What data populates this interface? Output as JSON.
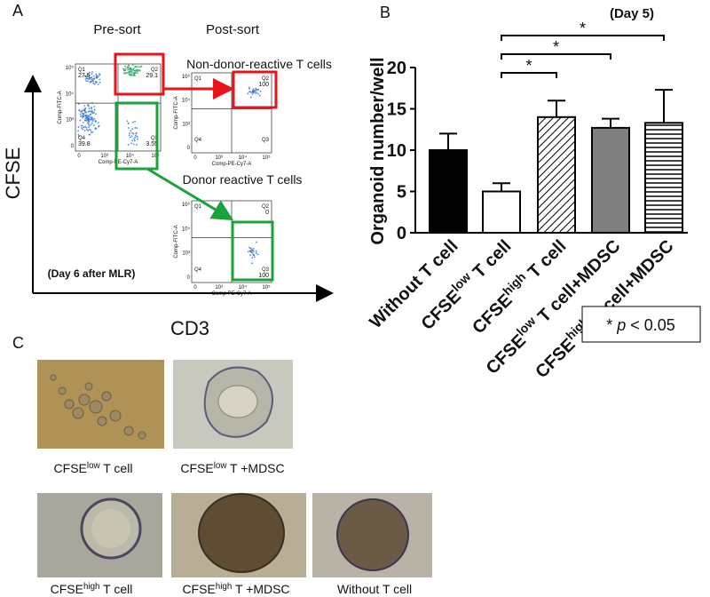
{
  "panel_a": {
    "label": "A",
    "pre_sort": "Pre-sort",
    "post_sort": "Post-sort",
    "y_axis": "CFSE",
    "x_axis": "CD3",
    "non_donor": "Non-donor-reactive T cells",
    "donor": "Donor reactive T cells",
    "note": "(Day 6 after MLR)",
    "plots": [
      {
        "y_label": "Comp-FITC-A",
        "x_label": "Comp-PE-Cy7-A",
        "y_ticks": [
          "10⁵",
          "10⁴",
          "10³",
          "0"
        ],
        "x_ticks": [
          "0",
          "10³",
          "10⁴",
          "10⁵"
        ],
        "quadrants": [
          {
            "name": "Q1",
            "value": 27.5
          },
          {
            "name": "Q2",
            "value": 29.1
          },
          {
            "name": "Q4",
            "value": 39.8
          },
          {
            "name": "Q3",
            "value": 3.55
          }
        ]
      },
      {
        "y_label": "Comp-FITC-A",
        "x_label": "Comp-PE-Cy7-A",
        "y_ticks": [
          "10⁵",
          "10⁴",
          "10³",
          "0"
        ],
        "x_ticks": [
          "0",
          "10³",
          "10⁴",
          "10⁵"
        ],
        "quadrants": [
          {
            "name": "Q1"
          },
          {
            "name": "Q2",
            "value": 100
          },
          {
            "name": "Q4"
          },
          {
            "name": "Q3"
          }
        ]
      },
      {
        "y_label": "Comp-FITC-A",
        "x_label": "Comp-PE-Cy7-A",
        "y_ticks": [
          "10⁵",
          "10⁴",
          "10³",
          "0"
        ],
        "x_ticks": [
          "0",
          "10³",
          "10⁴",
          "10⁵"
        ],
        "quadrants": [
          {
            "name": "Q1"
          },
          {
            "name": "Q2",
            "value": 0
          },
          {
            "name": "Q4"
          },
          {
            "name": "Q3",
            "value": 100
          }
        ]
      }
    ]
  },
  "chart_data": {
    "type": "bar",
    "label": "B",
    "subtitle": "(Day 5)",
    "y_label": "Organoid number/well",
    "categories": [
      "Without T cell",
      "CFSElow T cell",
      "CFSEhigh T cell",
      "CFSElow T cell+MDSC",
      "CFSEhigh T cell+MDSC"
    ],
    "values": [
      10,
      5,
      14,
      12.7,
      13.3
    ],
    "errors": [
      2,
      1,
      2,
      1.1,
      4
    ],
    "fills": [
      "#000000",
      "#ffffff",
      "diagonal",
      "#7f7f7f",
      "horizontal"
    ],
    "ylim": [
      0,
      20
    ],
    "yticks": [
      0,
      5,
      10,
      15,
      20
    ],
    "comparisons": [
      {
        "from": 1,
        "to": 2,
        "label": "*"
      },
      {
        "from": 1,
        "to": 3,
        "label": "*"
      },
      {
        "from": 1,
        "to": 4,
        "label": "*"
      }
    ],
    "note": "* p < 0.05"
  },
  "panel_c": {
    "label": "C",
    "captions": [
      "CFSElow T cell",
      "CFSElow T +MDSC",
      "CFSEhigh T cell",
      "CFSEhigh T +MDSC",
      "Without T cell"
    ]
  }
}
